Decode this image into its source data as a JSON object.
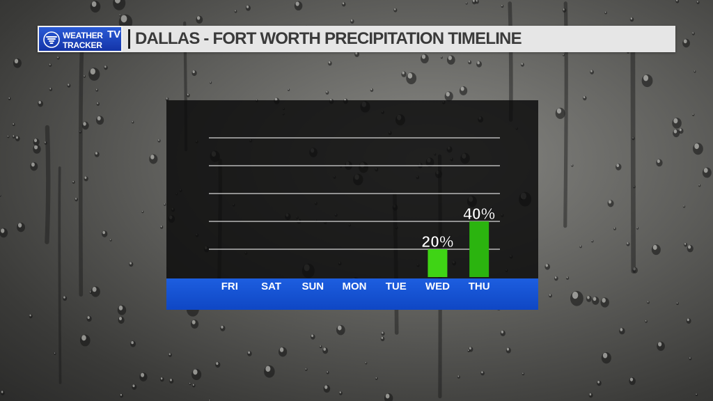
{
  "header": {
    "logo": {
      "line1": "WEATHER",
      "line2": "TRACKER",
      "tv": "TV"
    },
    "title": "DALLAS - FORT WORTH PRECIPITATION TIMELINE"
  },
  "colors": {
    "bar_wed": "#3fd415",
    "bar_thu": "#2bb40f",
    "axis_band": "#1a56d6",
    "gridline": "#d8d8d8"
  },
  "chart_data": {
    "type": "bar",
    "title": "DALLAS - FORT WORTH PRECIPITATION TIMELINE",
    "categories": [
      "FRI",
      "SAT",
      "SUN",
      "MON",
      "TUE",
      "WED",
      "THU"
    ],
    "values": [
      0,
      0,
      0,
      0,
      0,
      20,
      40
    ],
    "labels": [
      "",
      "",
      "",
      "",
      "",
      "20%",
      "40%"
    ],
    "ylim": [
      0,
      100
    ],
    "grid": true
  }
}
